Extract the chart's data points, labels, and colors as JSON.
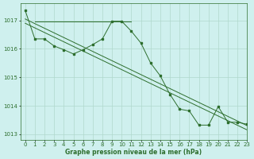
{
  "title": "Graphe pression niveau de la mer (hPa)",
  "background_color": "#cff0ee",
  "grid_color": "#b0d8cc",
  "line_color": "#2d6e2d",
  "xlim": [
    -0.5,
    23
  ],
  "ylim": [
    1012.8,
    1017.6
  ],
  "yticks": [
    1013,
    1014,
    1015,
    1016,
    1017
  ],
  "xticks": [
    0,
    1,
    2,
    3,
    4,
    5,
    6,
    7,
    8,
    9,
    10,
    11,
    12,
    13,
    14,
    15,
    16,
    17,
    18,
    19,
    20,
    21,
    22,
    23
  ],
  "trend1_x": [
    0,
    23
  ],
  "trend1_y": [
    1017.05,
    1013.3
  ],
  "trend2_x": [
    0,
    23
  ],
  "trend2_y": [
    1016.9,
    1013.15
  ],
  "series_flat_x": [
    1,
    2,
    3,
    4,
    5,
    6,
    7,
    8,
    9,
    10,
    11
  ],
  "series_flat_y": [
    1016.97,
    1016.97,
    1016.97,
    1016.97,
    1016.97,
    1016.97,
    1016.97,
    1016.97,
    1016.97,
    1016.97,
    1016.97
  ],
  "series_main_x": [
    0,
    1,
    2,
    3,
    4,
    5,
    6,
    7,
    8,
    9,
    10,
    11,
    12,
    13,
    14,
    15,
    16,
    17,
    18,
    19,
    20,
    21,
    22,
    23
  ],
  "series_main_y": [
    1017.35,
    1016.35,
    1016.35,
    1016.1,
    1015.97,
    1015.82,
    1015.97,
    1016.15,
    1016.35,
    1016.97,
    1016.97,
    1016.62,
    1016.2,
    1015.5,
    1015.05,
    1014.4,
    1013.88,
    1013.82,
    1013.32,
    1013.32,
    1013.97,
    1013.42,
    1013.42,
    1013.35
  ]
}
